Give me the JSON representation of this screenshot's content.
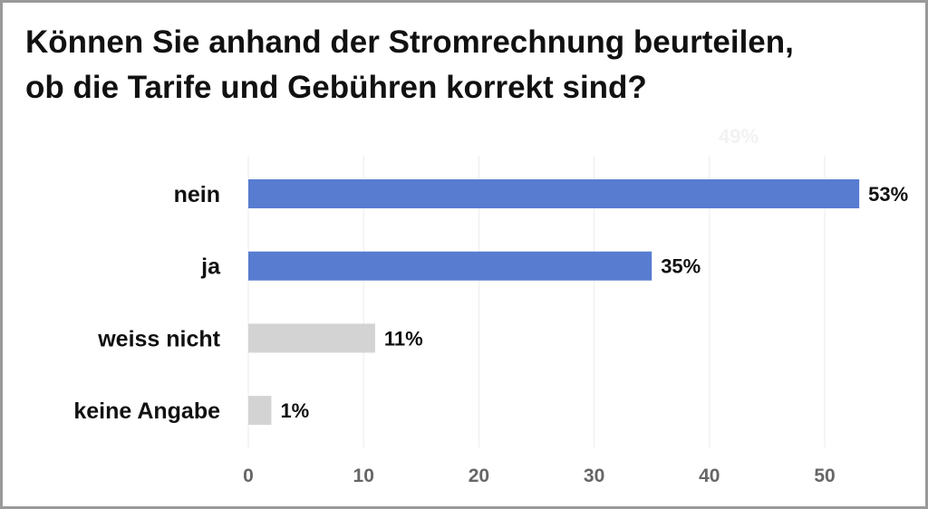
{
  "chart_data": {
    "type": "bar",
    "orientation": "horizontal",
    "title": "Können Sie anhand der Stromrechnung beurteilen, ob die Tarife und Gebühren korrekt sind?",
    "title_lines": [
      "Können Sie anhand der Stromrechnung beurteilen,",
      "ob die Tarife und Gebühren korrekt sind?"
    ],
    "categories": [
      "nein",
      "ja",
      "weiss nicht",
      "keine Angabe"
    ],
    "values": [
      53,
      35,
      11,
      1
    ],
    "data_labels": [
      "53%",
      "35%",
      "11%",
      "1%"
    ],
    "bar_colors": [
      "#577cd0",
      "#577cd0",
      "#d3d3d3",
      "#d3d3d3"
    ],
    "xlim": [
      0,
      55
    ],
    "xticks": [
      0,
      10,
      20,
      30,
      40,
      50
    ],
    "xtick_labels": [
      "0",
      "10",
      "20",
      "30",
      "40",
      "50"
    ],
    "grid": true,
    "legend": "none",
    "faint_annotation": "49%"
  }
}
